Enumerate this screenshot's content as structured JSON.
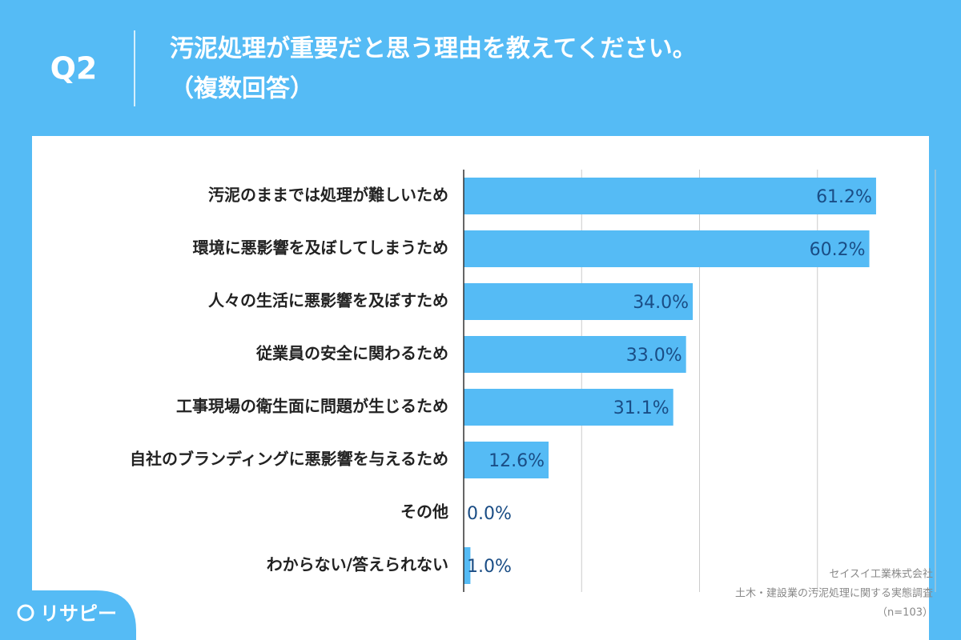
{
  "chart_data": {
    "type": "bar",
    "orientation": "horizontal",
    "question": "Q2",
    "title": "汚泥処理が重要だと思う理由を教えてください。",
    "subtitle": "（複数回答）",
    "categories": [
      "汚泥のままでは処理が難しいため",
      "環境に悪影響を及ぼしてしまうため",
      "人々の生活に悪影響を及ぼすため",
      "従業員の安全に関わるため",
      "工事現場の衛生面に問題が生じるため",
      "自社のブランディングに悪影響を与えるため",
      "その他",
      "わからない/答えられない"
    ],
    "values": [
      61.2,
      60.2,
      34.0,
      33.0,
      31.1,
      12.6,
      0.0,
      1.0
    ],
    "value_labels": [
      "61.2%",
      "60.2%",
      "34.0%",
      "33.0%",
      "31.1%",
      "12.6%",
      "0.0%",
      "1.0%"
    ],
    "color": "#55bbf5",
    "xlim": [
      0,
      70
    ],
    "xticks": [
      0,
      17.5,
      35,
      52.5,
      70
    ],
    "grid": true,
    "source_lines": [
      "セイスイ工業株式会社",
      "土木・建設業の汚泥処理に関する実態調査",
      "（n=103）"
    ],
    "brand": "リサピー"
  }
}
